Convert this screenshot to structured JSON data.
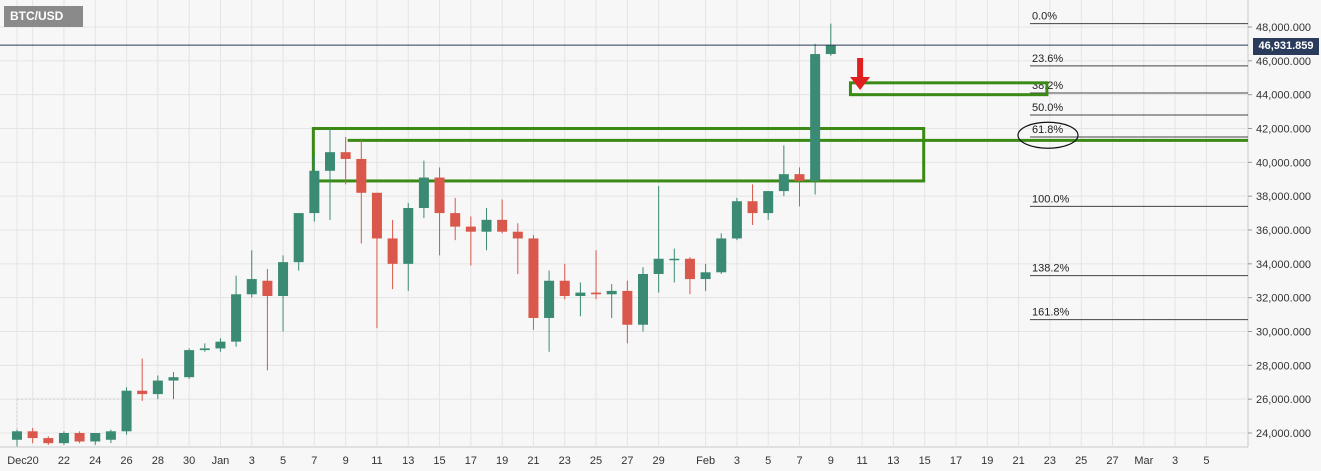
{
  "symbol_label": "BTC/USD",
  "last_price_label": "46,931.859",
  "chart_data": {
    "type": "candlestick",
    "title": "BTC/USD",
    "ylim": [
      23000,
      48600
    ],
    "y_ticks": [
      "24,000.000",
      "26,000.000",
      "28,000.000",
      "30,000.000",
      "32,000.000",
      "34,000.000",
      "36,000.000",
      "38,000.000",
      "40,000.000",
      "42,000.000",
      "44,000.000",
      "46,000.000",
      "48,000.000"
    ],
    "y_tick_values": [
      24000,
      26000,
      28000,
      30000,
      32000,
      34000,
      36000,
      38000,
      40000,
      42000,
      44000,
      46000,
      48000
    ],
    "x_ticks": [
      "Dec",
      "20",
      "22",
      "24",
      "26",
      "28",
      "30",
      "Jan",
      "3",
      "5",
      "7",
      "9",
      "11",
      "13",
      "15",
      "17",
      "19",
      "21",
      "23",
      "25",
      "27",
      "29",
      "Feb",
      "3",
      "5",
      "7",
      "9",
      "11",
      "13",
      "15",
      "17",
      "19",
      "21",
      "23",
      "25",
      "27",
      "Mar",
      "3",
      "5"
    ],
    "x_tick_day_index": [
      0,
      1,
      3,
      5,
      7,
      9,
      11,
      13,
      15,
      17,
      19,
      21,
      23,
      25,
      27,
      29,
      31,
      33,
      35,
      37,
      39,
      41,
      44,
      46,
      48,
      50,
      52,
      54,
      56,
      58,
      60,
      62,
      64,
      66,
      68,
      70,
      72,
      74,
      76
    ],
    "grid": true,
    "up_color": "#3a8a74",
    "down_color": "#d9574b",
    "candles": [
      {
        "d": "Dec 19",
        "o": 23600,
        "h": 24200,
        "l": 23200,
        "c": 24100
      },
      {
        "d": "Dec 20",
        "o": 24100,
        "h": 24300,
        "l": 23400,
        "c": 23700
      },
      {
        "d": "Dec 21",
        "o": 23700,
        "h": 23800,
        "l": 23300,
        "c": 23400
      },
      {
        "d": "Dec 22",
        "o": 23400,
        "h": 24100,
        "l": 23300,
        "c": 24000
      },
      {
        "d": "Dec 23",
        "o": 24000,
        "h": 24100,
        "l": 23400,
        "c": 23500
      },
      {
        "d": "Dec 24",
        "o": 23500,
        "h": 23900,
        "l": 23300,
        "c": 24000
      },
      {
        "d": "Dec 25",
        "o": 23600,
        "h": 24200,
        "l": 23400,
        "c": 24100
      },
      {
        "d": "Dec 26",
        "o": 24100,
        "h": 26700,
        "l": 23900,
        "c": 26500
      },
      {
        "d": "Dec 27",
        "o": 26500,
        "h": 28400,
        "l": 25900,
        "c": 26300
      },
      {
        "d": "Dec 28",
        "o": 26300,
        "h": 27400,
        "l": 26000,
        "c": 27100
      },
      {
        "d": "Dec 29",
        "o": 27100,
        "h": 27600,
        "l": 26000,
        "c": 27300
      },
      {
        "d": "Dec 30",
        "o": 27300,
        "h": 29000,
        "l": 27200,
        "c": 28900
      },
      {
        "d": "Dec 31",
        "o": 28900,
        "h": 29300,
        "l": 28800,
        "c": 29000
      },
      {
        "d": "Jan 1",
        "o": 29000,
        "h": 29600,
        "l": 28800,
        "c": 29400
      },
      {
        "d": "Jan 2",
        "o": 29400,
        "h": 33300,
        "l": 29100,
        "c": 32200
      },
      {
        "d": "Jan 3",
        "o": 32200,
        "h": 34800,
        "l": 32000,
        "c": 33100
      },
      {
        "d": "Jan 4",
        "o": 33000,
        "h": 33700,
        "l": 27700,
        "c": 32100
      },
      {
        "d": "Jan 5",
        "o": 32100,
        "h": 34500,
        "l": 30000,
        "c": 34100
      },
      {
        "d": "Jan 6",
        "o": 34100,
        "h": 37000,
        "l": 33600,
        "c": 37000
      },
      {
        "d": "Jan 7",
        "o": 37000,
        "h": 40400,
        "l": 36500,
        "c": 39500
      },
      {
        "d": "Jan 8",
        "o": 39500,
        "h": 42000,
        "l": 36600,
        "c": 40600
      },
      {
        "d": "Jan 9",
        "o": 40600,
        "h": 41500,
        "l": 38700,
        "c": 40200
      },
      {
        "d": "Jan 10",
        "o": 40200,
        "h": 41400,
        "l": 35200,
        "c": 38200
      },
      {
        "d": "Jan 11",
        "o": 38200,
        "h": 38200,
        "l": 30200,
        "c": 35500
      },
      {
        "d": "Jan 12",
        "o": 35500,
        "h": 36600,
        "l": 32500,
        "c": 34000
      },
      {
        "d": "Jan 13",
        "o": 34000,
        "h": 37600,
        "l": 32400,
        "c": 37300
      },
      {
        "d": "Jan 14",
        "o": 37300,
        "h": 40100,
        "l": 36700,
        "c": 39100
      },
      {
        "d": "Jan 15",
        "o": 39100,
        "h": 39700,
        "l": 34500,
        "c": 37000
      },
      {
        "d": "Jan 16",
        "o": 37000,
        "h": 37900,
        "l": 35400,
        "c": 36200
      },
      {
        "d": "Jan 17",
        "o": 36200,
        "h": 36800,
        "l": 33900,
        "c": 35900
      },
      {
        "d": "Jan 18",
        "o": 35900,
        "h": 37300,
        "l": 34800,
        "c": 36600
      },
      {
        "d": "Jan 19",
        "o": 36600,
        "h": 37800,
        "l": 35800,
        "c": 35900
      },
      {
        "d": "Jan 20",
        "o": 35900,
        "h": 36400,
        "l": 33400,
        "c": 35500
      },
      {
        "d": "Jan 21",
        "o": 35500,
        "h": 35700,
        "l": 30100,
        "c": 30800
      },
      {
        "d": "Jan 22",
        "o": 30800,
        "h": 33600,
        "l": 28800,
        "c": 33000
      },
      {
        "d": "Jan 23",
        "o": 33000,
        "h": 34000,
        "l": 31900,
        "c": 32100
      },
      {
        "d": "Jan 24",
        "o": 32100,
        "h": 32900,
        "l": 30900,
        "c": 32300
      },
      {
        "d": "Jan 25",
        "o": 32300,
        "h": 34800,
        "l": 31900,
        "c": 32200
      },
      {
        "d": "Jan 26",
        "o": 32200,
        "h": 32800,
        "l": 30800,
        "c": 32400
      },
      {
        "d": "Jan 27",
        "o": 32400,
        "h": 33000,
        "l": 29300,
        "c": 30400
      },
      {
        "d": "Jan 28",
        "o": 30400,
        "h": 33800,
        "l": 30000,
        "c": 33400
      },
      {
        "d": "Jan 29",
        "o": 33400,
        "h": 38600,
        "l": 32300,
        "c": 34300
      },
      {
        "d": "Jan 30",
        "o": 34300,
        "h": 34900,
        "l": 32900,
        "c": 34300
      },
      {
        "d": "Jan 31",
        "o": 34300,
        "h": 34400,
        "l": 32200,
        "c": 33100
      },
      {
        "d": "Feb 1",
        "o": 33100,
        "h": 34000,
        "l": 32400,
        "c": 33500
      },
      {
        "d": "Feb 2",
        "o": 33500,
        "h": 35800,
        "l": 33400,
        "c": 35500
      },
      {
        "d": "Feb 3",
        "o": 35500,
        "h": 37900,
        "l": 35400,
        "c": 37700
      },
      {
        "d": "Feb 4",
        "o": 37700,
        "h": 38700,
        "l": 36300,
        "c": 37000
      },
      {
        "d": "Feb 5",
        "o": 37000,
        "h": 38300,
        "l": 36600,
        "c": 38300
      },
      {
        "d": "Feb 6",
        "o": 38300,
        "h": 41000,
        "l": 38000,
        "c": 39300
      },
      {
        "d": "Feb 7",
        "o": 39300,
        "h": 39700,
        "l": 37400,
        "c": 38900
      },
      {
        "d": "Feb 8",
        "o": 38900,
        "h": 47000,
        "l": 38100,
        "c": 46400
      },
      {
        "d": "Feb 9",
        "o": 46400,
        "h": 48200,
        "l": 46300,
        "c": 46932
      }
    ],
    "fib_levels": [
      {
        "label": "0.0%",
        "value": 48200
      },
      {
        "label": "23.6%",
        "value": 45700
      },
      {
        "label": "38.2%",
        "value": 44100
      },
      {
        "label": "50.0%",
        "value": 42800
      },
      {
        "label": "61.8%",
        "value": 41500
      },
      {
        "label": "100.0%",
        "value": 37400
      },
      {
        "label": "138.2%",
        "value": 33300
      },
      {
        "label": "161.8%",
        "value": 30700
      }
    ],
    "last_price": 46931.859,
    "resistance_zone": {
      "from_day": 19,
      "to_day": 58,
      "high": 42000,
      "low": 38900
    },
    "small_zone": {
      "from_day": 53,
      "to_day": 66,
      "high": 44700,
      "low": 44000
    },
    "line_level": 41300
  }
}
